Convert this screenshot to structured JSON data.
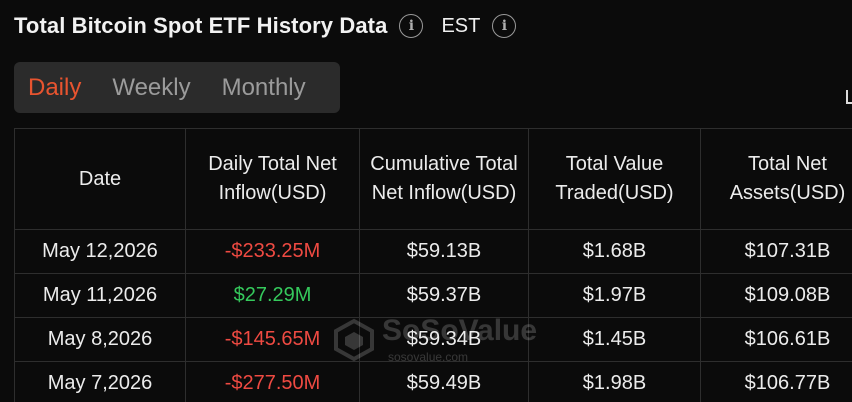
{
  "header": {
    "title": "Total Bitcoin Spot ETF History Data",
    "timezone": "EST"
  },
  "tabs": [
    {
      "label": "Daily",
      "active": true
    },
    {
      "label": "Weekly",
      "active": false
    },
    {
      "label": "Monthly",
      "active": false
    }
  ],
  "table": {
    "columns": [
      "Date",
      "Daily Total Net Inflow(USD)",
      "Cumulative Total Net Inflow(USD)",
      "Total Value Traded(USD)",
      "Total Net Assets(USD)"
    ],
    "rows": [
      {
        "date": "May 12,2026",
        "daily": "-$233.25M",
        "daily_sign": "negative",
        "cumulative": "$59.13B",
        "traded": "$1.68B",
        "assets": "$107.31B"
      },
      {
        "date": "May 11,2026",
        "daily": "$27.29M",
        "daily_sign": "positive",
        "cumulative": "$59.37B",
        "traded": "$1.97B",
        "assets": "$109.08B"
      },
      {
        "date": "May 8,2026",
        "daily": "-$145.65M",
        "daily_sign": "negative",
        "cumulative": "$59.34B",
        "traded": "$1.45B",
        "assets": "$106.61B"
      },
      {
        "date": "May 7,2026",
        "daily": "-$277.50M",
        "daily_sign": "negative",
        "cumulative": "$59.49B",
        "traded": "$1.98B",
        "assets": "$106.77B"
      }
    ]
  },
  "watermark": {
    "brand": "SoSoValue",
    "domain": "sosovalue.com"
  },
  "colors": {
    "accent": "#e8542f",
    "negative": "#ef4a42",
    "positive": "#35c95c",
    "background": "#0b0b0b"
  },
  "icons": [
    "info-icon",
    "timezone-info-icon",
    "watermark-logo-icon"
  ]
}
